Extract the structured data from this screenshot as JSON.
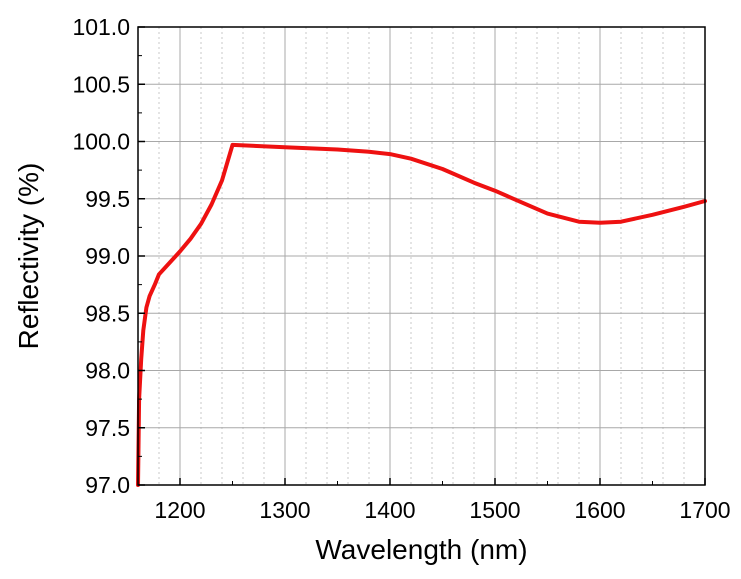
{
  "chart_data": {
    "type": "line",
    "title": "",
    "xlabel": "Wavelength (nm)",
    "ylabel": "Reflectivity (%)",
    "xlim": [
      1160,
      1700
    ],
    "ylim": [
      97.0,
      101.0
    ],
    "x_ticks": [
      1200,
      1300,
      1400,
      1500,
      1600,
      1700
    ],
    "x_tick_labels": [
      "1200",
      "1300",
      "1400",
      "1500",
      "1600",
      "1700"
    ],
    "y_ticks": [
      97.0,
      97.5,
      98.0,
      98.5,
      99.0,
      99.5,
      100.0,
      100.5,
      101.0
    ],
    "y_tick_labels": [
      "97.0",
      "97.5",
      "98.0",
      "98.5",
      "99.0",
      "99.5",
      "100.0",
      "100.5",
      "101.0"
    ],
    "grid": true,
    "minor_grid": true,
    "series": [
      {
        "color": "#ee1111",
        "x": [
          1160,
          1161,
          1163,
          1165,
          1168,
          1171,
          1176,
          1180,
          1190,
          1200,
          1210,
          1220,
          1230,
          1240,
          1250,
          1300,
          1350,
          1380,
          1400,
          1420,
          1450,
          1480,
          1500,
          1520,
          1550,
          1580,
          1600,
          1620,
          1650,
          1680,
          1700
        ],
        "y": [
          97.0,
          97.75,
          98.1,
          98.35,
          98.55,
          98.65,
          98.75,
          98.84,
          98.94,
          99.04,
          99.15,
          99.28,
          99.45,
          99.66,
          99.97,
          99.95,
          99.93,
          99.91,
          99.89,
          99.85,
          99.76,
          99.64,
          99.57,
          99.49,
          99.37,
          99.3,
          99.29,
          99.3,
          99.36,
          99.43,
          99.48
        ]
      }
    ]
  }
}
